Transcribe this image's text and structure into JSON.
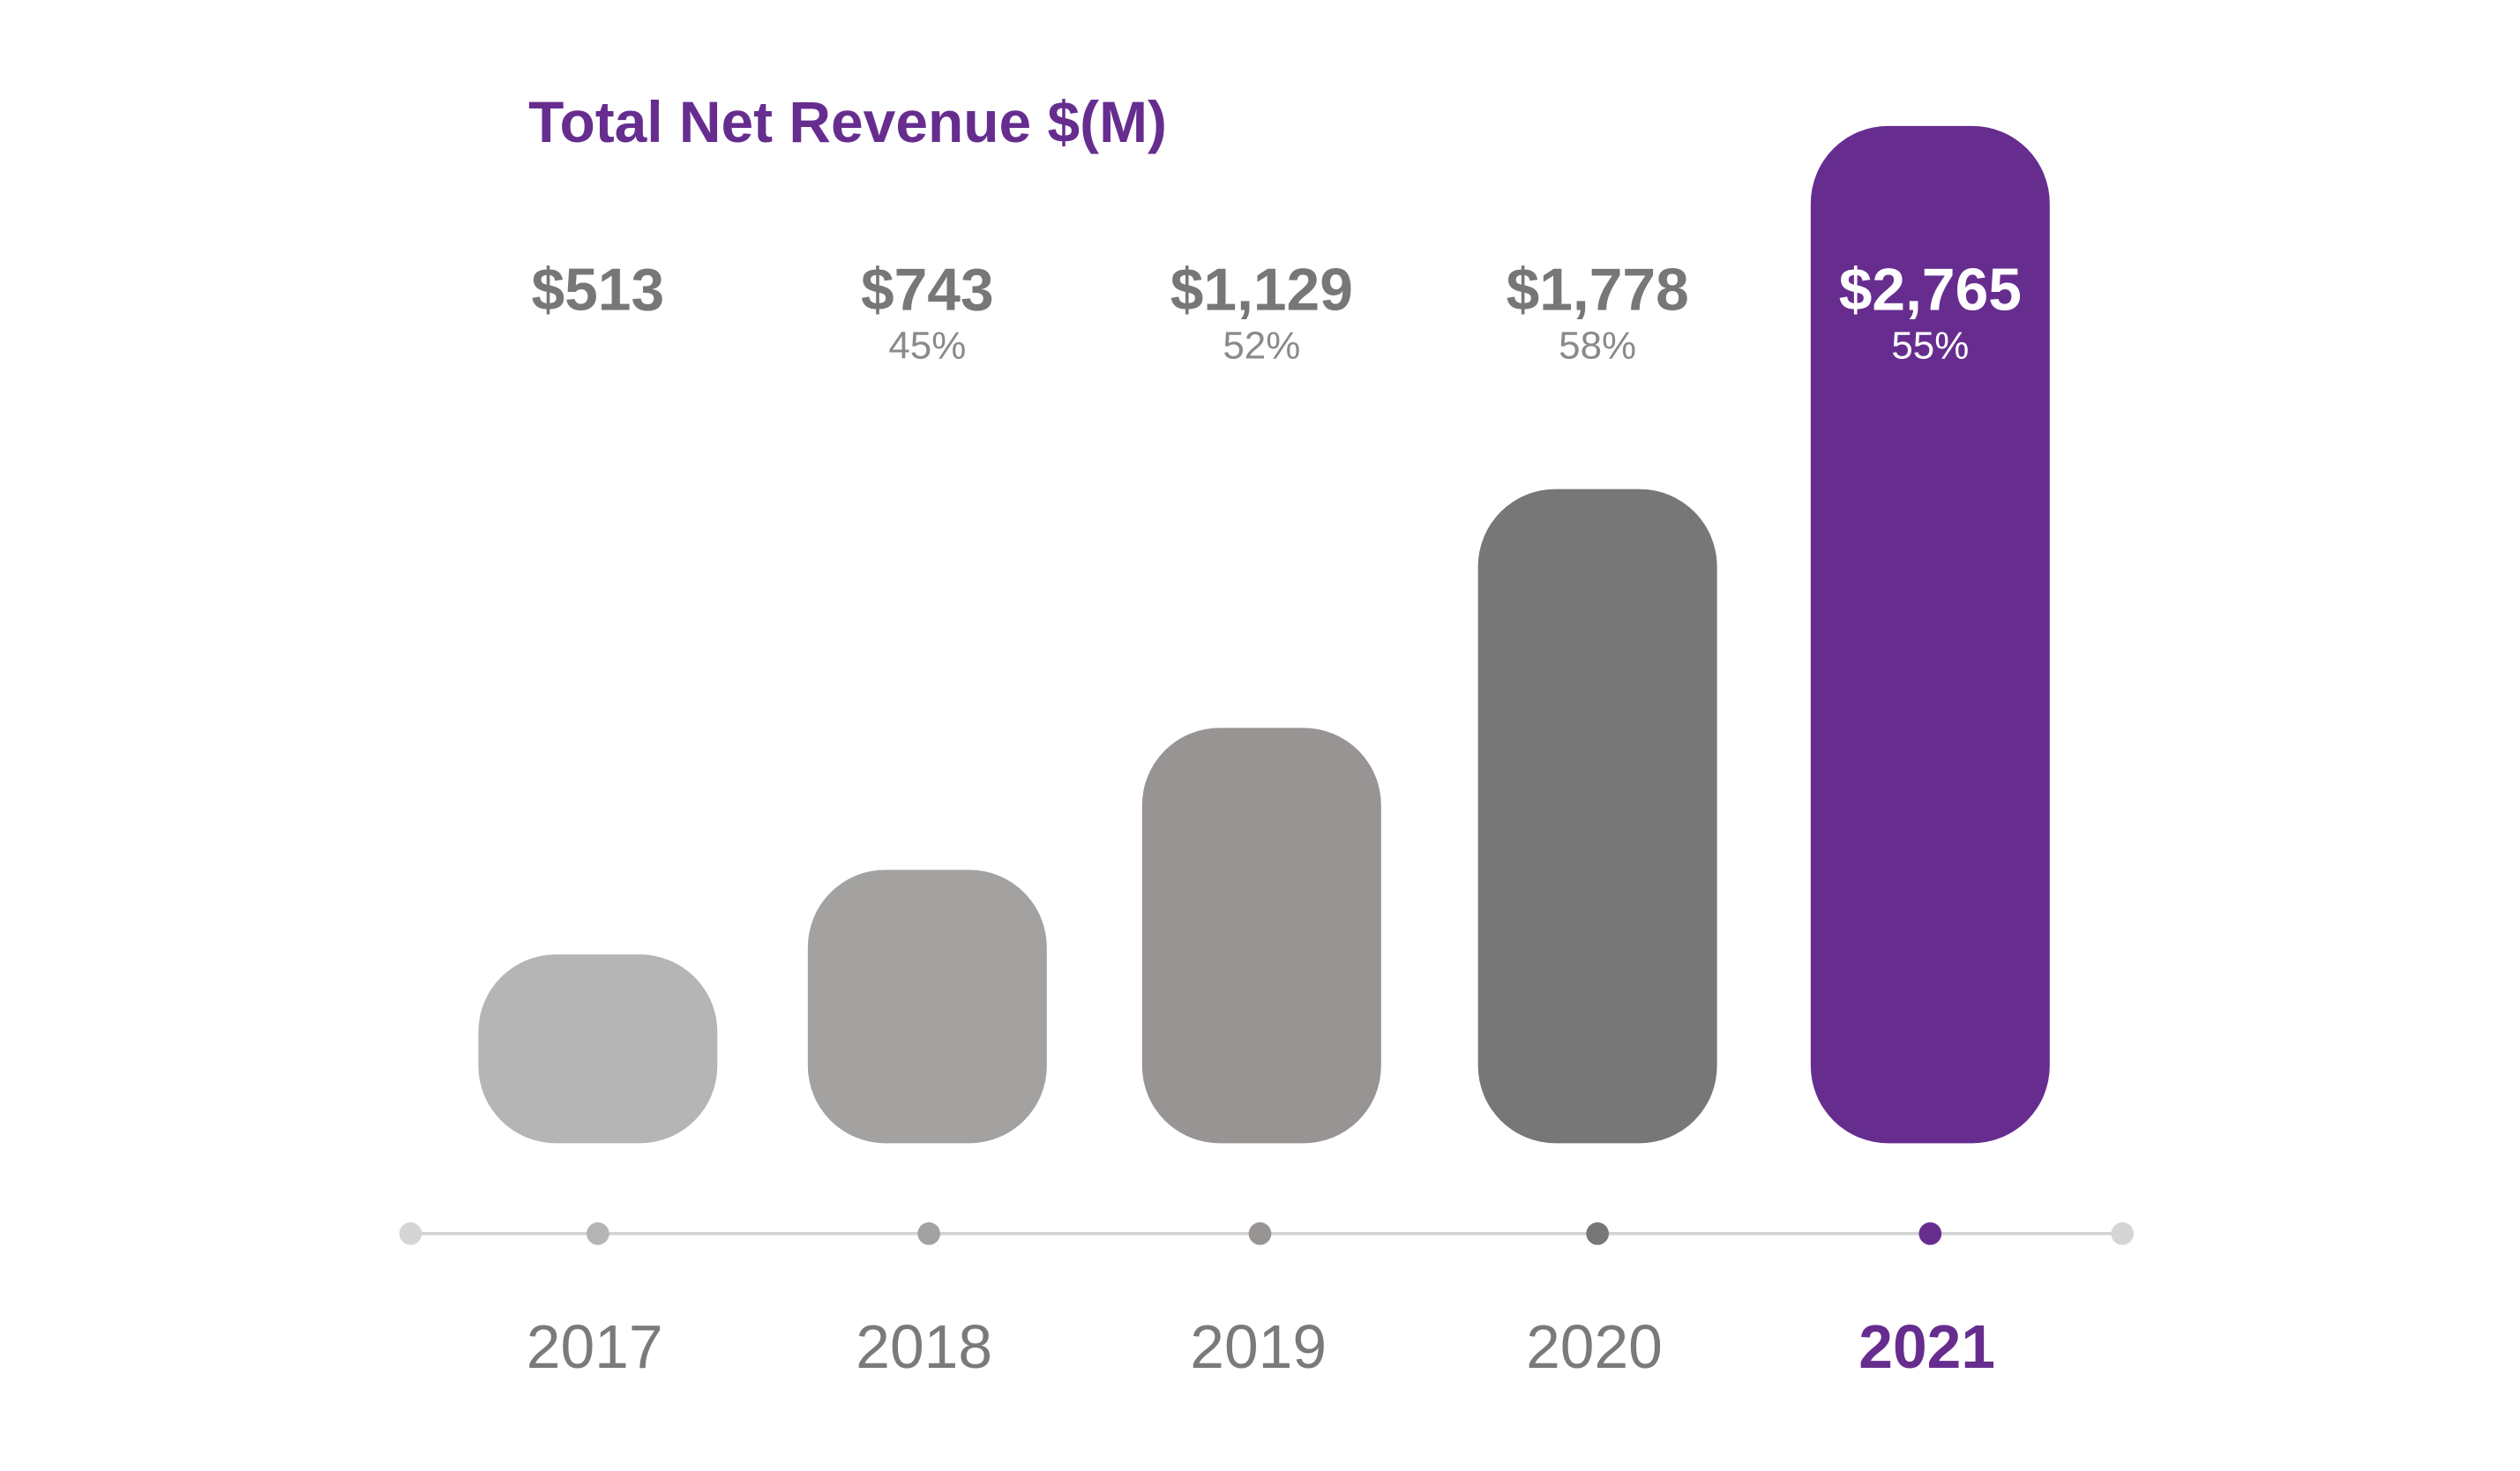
{
  "chart_data": {
    "type": "bar",
    "title": "Total Net Revenue $(M)",
    "xlabel": "",
    "ylabel": "",
    "ylim": [
      0,
      2765
    ],
    "grid": false,
    "categories": [
      "2017",
      "2018",
      "2019",
      "2020",
      "2021"
    ],
    "values": [
      513,
      743,
      1129,
      1778,
      2765
    ],
    "value_labels": [
      "$513",
      "$743",
      "$1,129",
      "$1,778",
      "$2,765"
    ],
    "growth_labels": [
      "",
      "45%",
      "52%",
      "58%",
      "55%"
    ],
    "highlight_index": 4,
    "colors": [
      "#b5b5b5",
      "#a3a2a1",
      "#979493",
      "#777777",
      "#662d8f"
    ],
    "axis_color": "#d3d3d3",
    "highlight_text_color": "#ffffff"
  }
}
